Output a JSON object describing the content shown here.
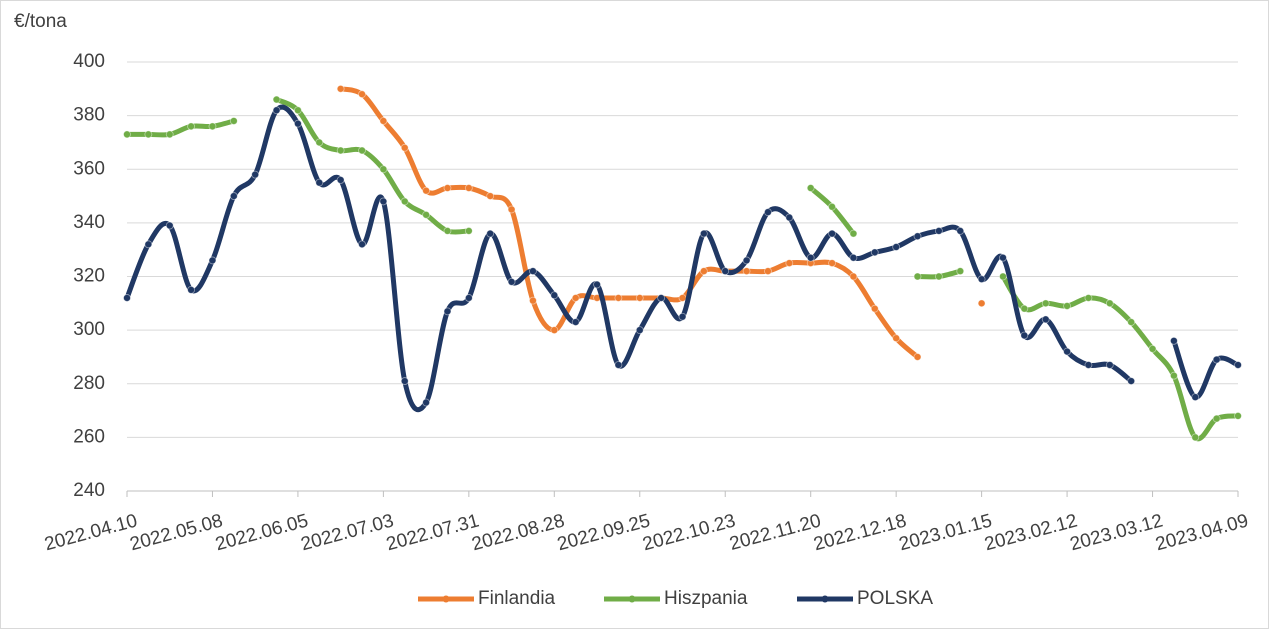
{
  "chart_data": {
    "type": "line",
    "ylabel": "€/tona",
    "categories": [
      "2022.04.10",
      null,
      null,
      null,
      "2022.05.08",
      null,
      null,
      null,
      "2022.06.05",
      null,
      null,
      null,
      "2022.07.03",
      null,
      null,
      null,
      "2022.07.31",
      null,
      null,
      null,
      "2022.08.28",
      null,
      null,
      null,
      "2022.09.25",
      null,
      null,
      null,
      "2022.10.23",
      null,
      null,
      null,
      "2022.11.20",
      null,
      null,
      null,
      "2022.12.18",
      null,
      null,
      null,
      "2023.01.15",
      null,
      null,
      null,
      "2023.02.12",
      null,
      null,
      null,
      "2023.03.12",
      null,
      null,
      null,
      "2023.04.09"
    ],
    "series": [
      {
        "name": "Finlandia",
        "color": "#ed7d31",
        "values": [
          null,
          null,
          null,
          null,
          null,
          null,
          null,
          null,
          null,
          null,
          390,
          388,
          378,
          368,
          352,
          353,
          353,
          350,
          345,
          311,
          300,
          312,
          312,
          312,
          312,
          312,
          312,
          322,
          322,
          322,
          322,
          325,
          325,
          325,
          320,
          308,
          297,
          290,
          null,
          null,
          310,
          null,
          null,
          null,
          null,
          null,
          null,
          null,
          null,
          null,
          null,
          null,
          null
        ]
      },
      {
        "name": "Hiszpania",
        "color": "#70ad47",
        "values": [
          373,
          373,
          373,
          376,
          376,
          378,
          null,
          386,
          382,
          370,
          367,
          367,
          360,
          348,
          343,
          337,
          337,
          null,
          null,
          null,
          null,
          null,
          null,
          null,
          null,
          null,
          null,
          null,
          null,
          null,
          null,
          null,
          353,
          346,
          336,
          null,
          null,
          320,
          320,
          322,
          null,
          320,
          308,
          310,
          309,
          312,
          310,
          303,
          293,
          283,
          260,
          267,
          268
        ]
      },
      {
        "name": "POLSKA",
        "color": "#203864",
        "values": [
          312,
          332,
          339,
          315,
          326,
          350,
          358,
          382,
          377,
          355,
          356,
          332,
          348,
          281,
          273,
          307,
          312,
          336,
          318,
          322,
          313,
          303,
          317,
          287,
          300,
          312,
          305,
          336,
          322,
          326,
          344,
          342,
          327,
          336,
          327,
          329,
          331,
          335,
          337,
          337,
          319,
          327,
          298,
          304,
          292,
          287,
          287,
          281,
          null,
          296,
          275,
          289,
          287
        ]
      }
    ],
    "ylim": [
      240,
      400
    ],
    "yticks": [
      240,
      260,
      280,
      300,
      320,
      340,
      360,
      380,
      400
    ],
    "grid": true,
    "legend": "bottom"
  }
}
